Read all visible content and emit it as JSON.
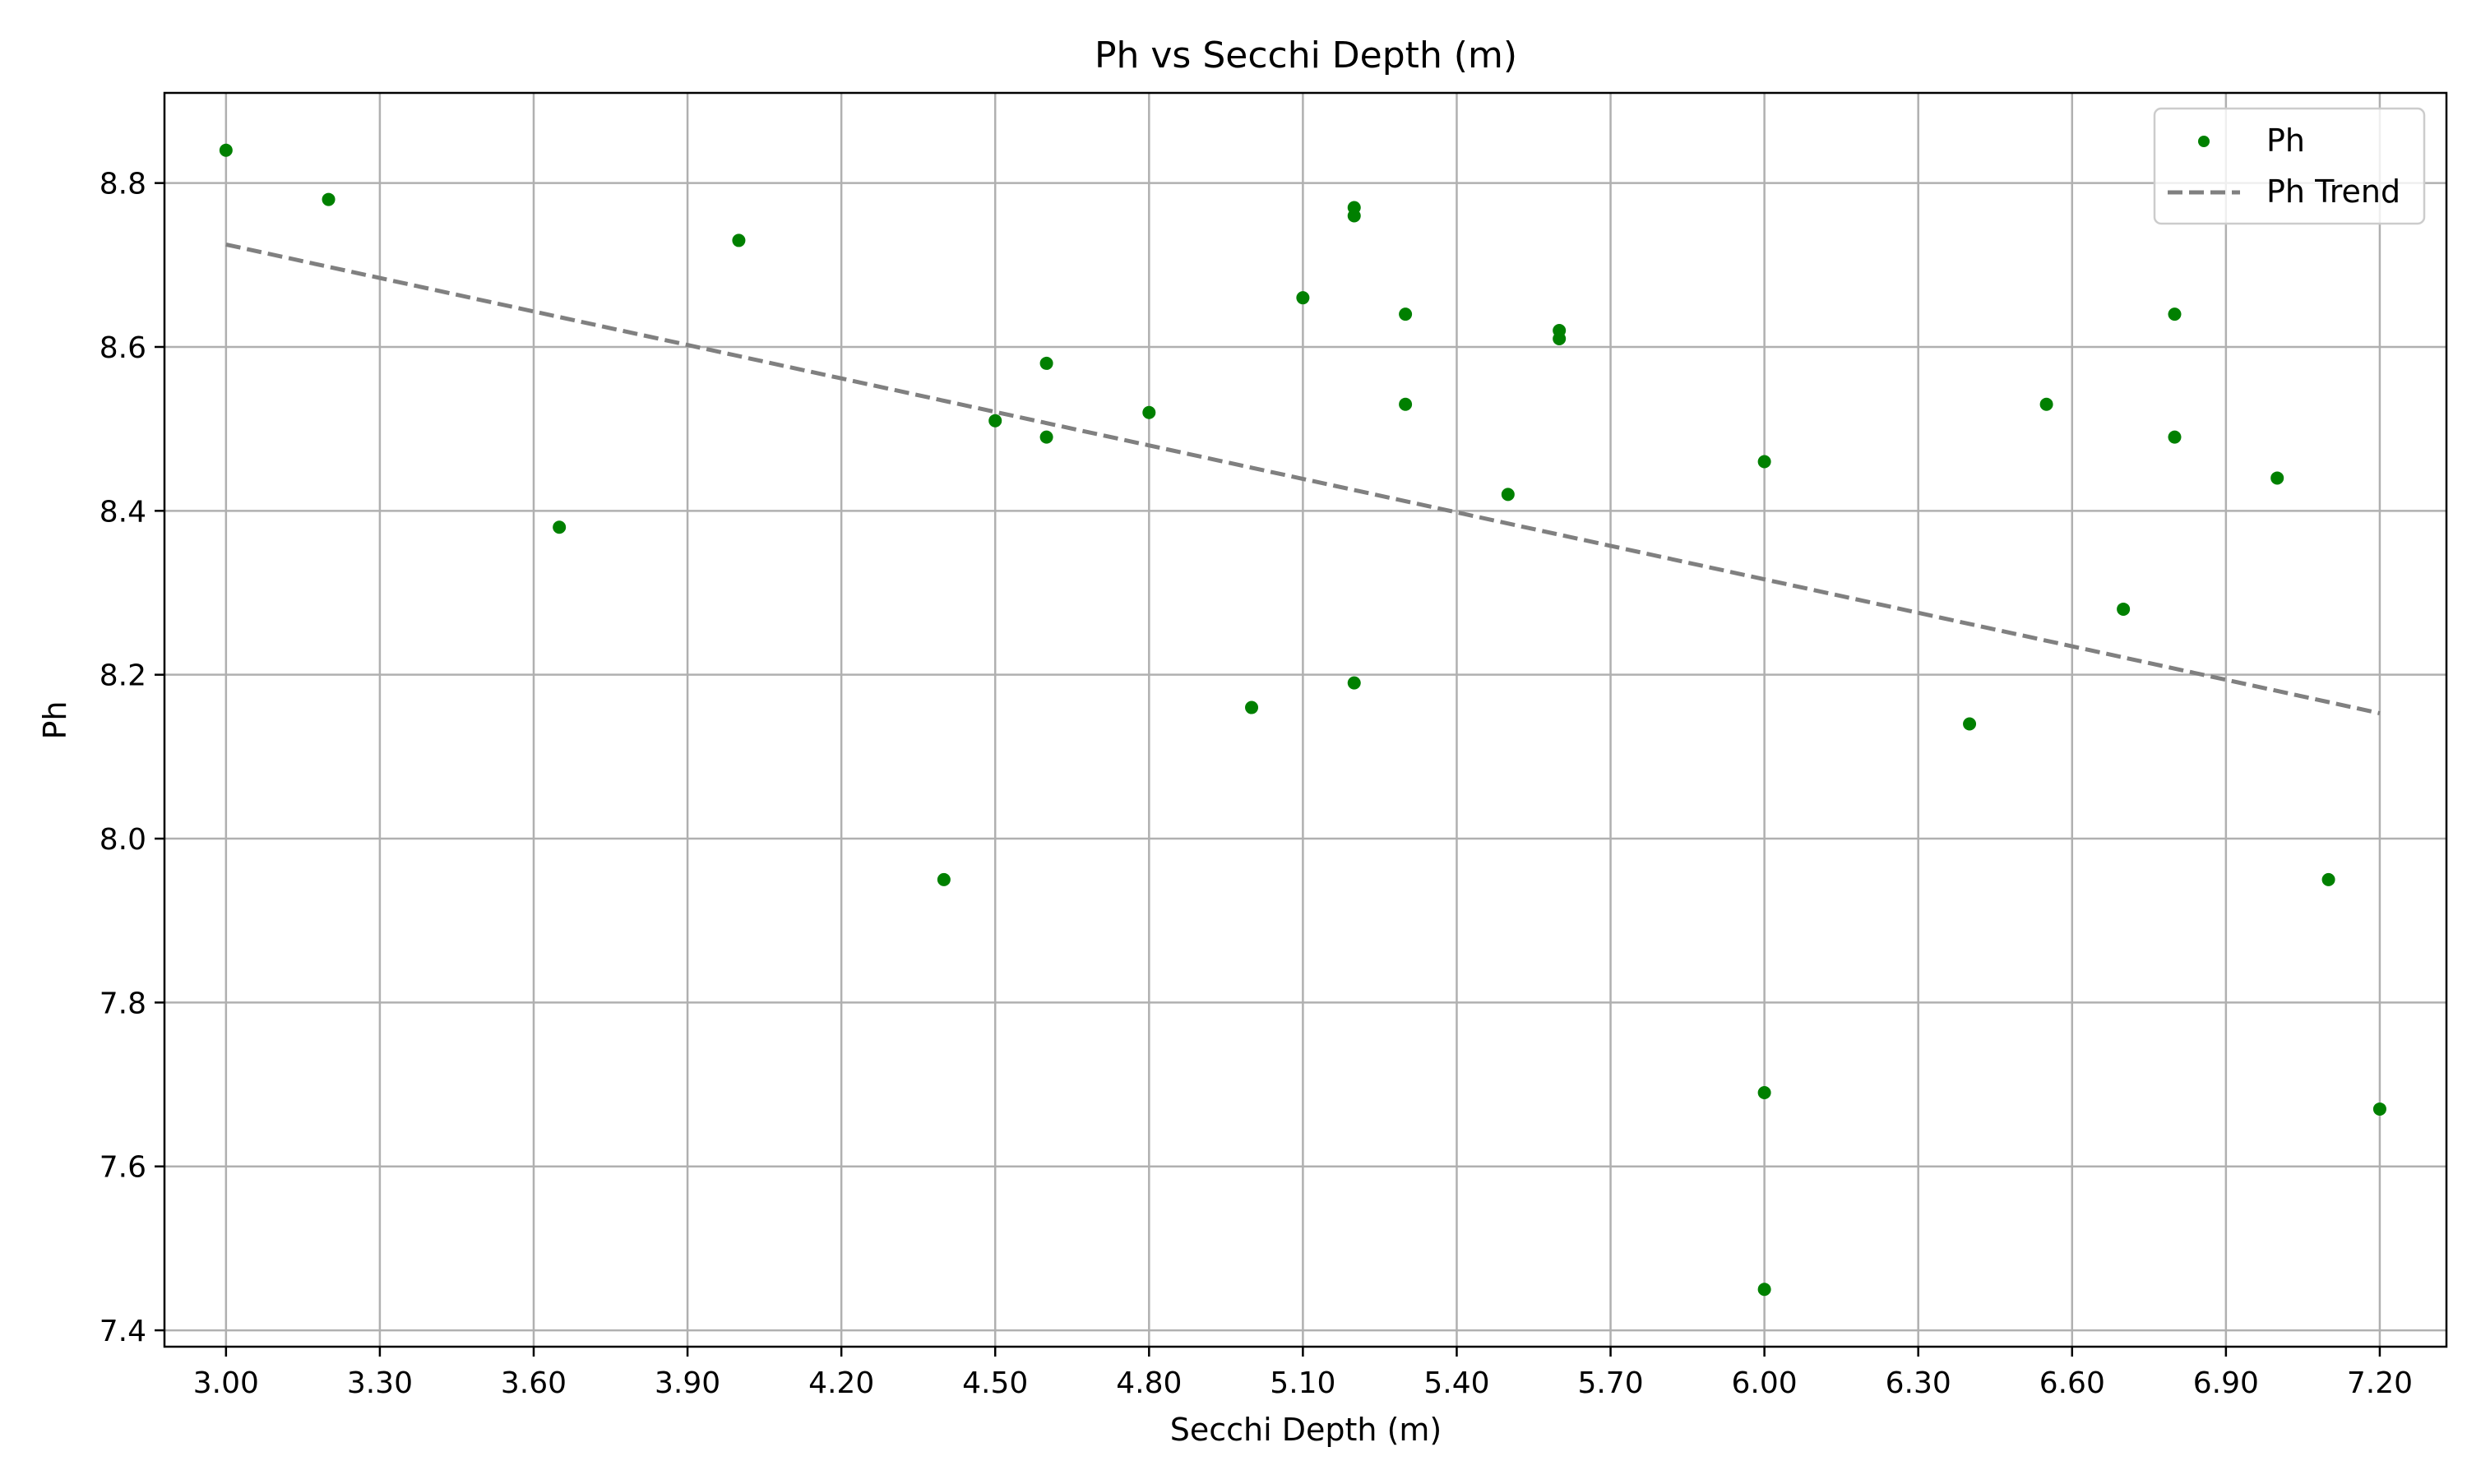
{
  "chart_data": {
    "type": "scatter",
    "title": "Ph vs Secchi Depth (m)",
    "xlabel": "Secchi Depth (m)",
    "ylabel": "Ph",
    "xlim": [
      2.88,
      7.33
    ],
    "ylim": [
      7.38,
      8.91
    ],
    "x_ticks": [
      "3.00",
      "3.30",
      "3.60",
      "3.90",
      "4.20",
      "4.50",
      "4.80",
      "5.10",
      "5.40",
      "5.70",
      "6.00",
      "6.30",
      "6.60",
      "6.90",
      "7.20"
    ],
    "y_ticks": [
      "7.4",
      "7.6",
      "7.8",
      "8.0",
      "8.2",
      "8.4",
      "8.6",
      "8.8"
    ],
    "grid": true,
    "legend_position": "top-right",
    "series": [
      {
        "name": "Ph",
        "kind": "scatter",
        "color": "#008000",
        "points": [
          [
            3.0,
            8.84
          ],
          [
            3.2,
            8.78
          ],
          [
            3.65,
            8.38
          ],
          [
            4.0,
            8.73
          ],
          [
            4.4,
            7.95
          ],
          [
            4.5,
            8.51
          ],
          [
            4.6,
            8.58
          ],
          [
            4.6,
            8.49
          ],
          [
            4.8,
            8.52
          ],
          [
            5.0,
            8.16
          ],
          [
            5.1,
            8.66
          ],
          [
            5.2,
            8.77
          ],
          [
            5.2,
            8.76
          ],
          [
            5.2,
            8.19
          ],
          [
            5.3,
            8.64
          ],
          [
            5.3,
            8.53
          ],
          [
            5.5,
            8.42
          ],
          [
            5.6,
            8.62
          ],
          [
            5.6,
            8.61
          ],
          [
            6.0,
            8.46
          ],
          [
            6.0,
            7.69
          ],
          [
            6.0,
            7.45
          ],
          [
            6.4,
            8.14
          ],
          [
            6.55,
            8.53
          ],
          [
            6.7,
            8.28
          ],
          [
            6.8,
            8.64
          ],
          [
            6.8,
            8.49
          ],
          [
            7.0,
            8.44
          ],
          [
            7.1,
            7.95
          ],
          [
            7.2,
            7.67
          ]
        ]
      },
      {
        "name": "Ph Trend",
        "kind": "line",
        "style": "dashed",
        "color": "#808080",
        "points": [
          [
            3.0,
            8.725
          ],
          [
            7.2,
            8.153
          ]
        ]
      }
    ]
  }
}
